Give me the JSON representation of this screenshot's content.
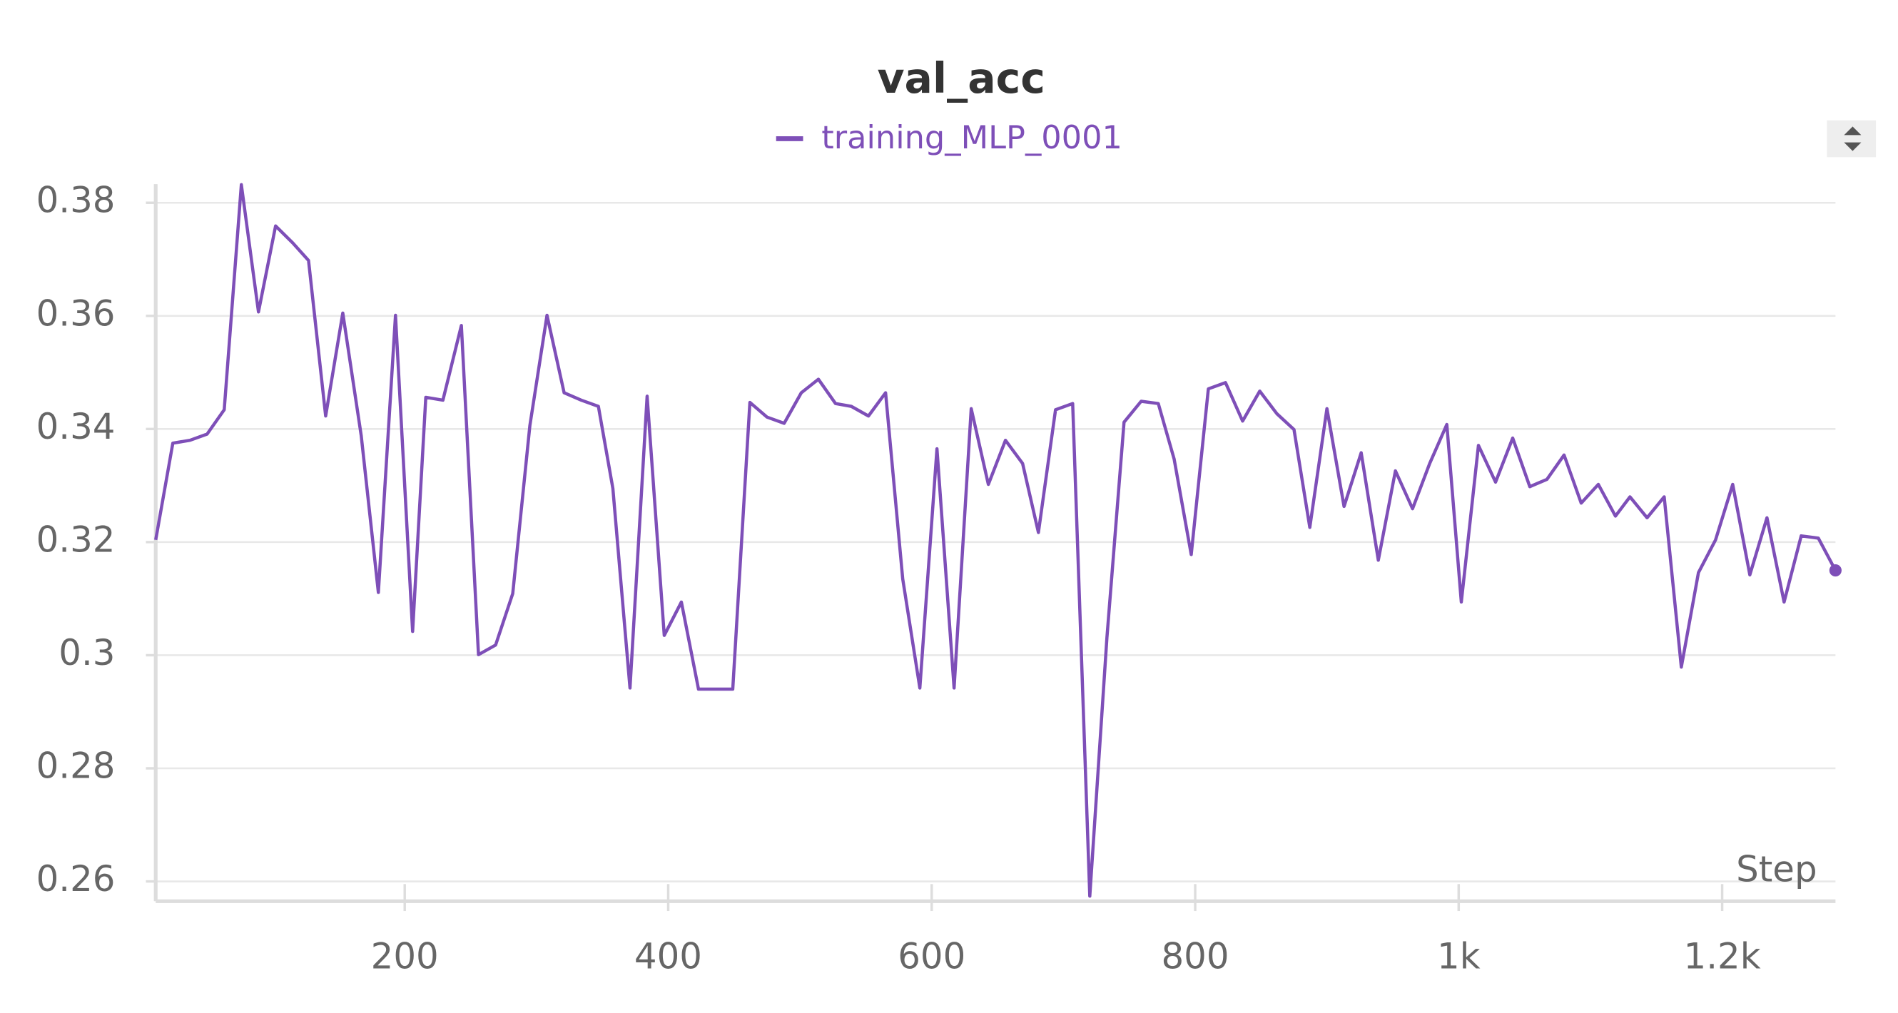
{
  "chart_data": {
    "type": "line",
    "title": "val_acc",
    "xlabel": "Step",
    "series": [
      {
        "name": "training_MLP_0001",
        "color": "#7e4fb8",
        "x": [
          11,
          24,
          37,
          50,
          63,
          76,
          89,
          102,
          115,
          127,
          140,
          153,
          167,
          180,
          193,
          206,
          216,
          229,
          243,
          256,
          269,
          282,
          295,
          308,
          321,
          334,
          347,
          358,
          371,
          384,
          397,
          410,
          423,
          436,
          449,
          462,
          475,
          488,
          501,
          514,
          527,
          539,
          552,
          565,
          578,
          591,
          604,
          617,
          630,
          643,
          656,
          669,
          681,
          694,
          707,
          720,
          733,
          746,
          759,
          772,
          784,
          797,
          810,
          823,
          836,
          849,
          862,
          875,
          887,
          900,
          913,
          926,
          939,
          952,
          965,
          978,
          991,
          1002,
          1015,
          1028,
          1041,
          1054,
          1067,
          1080,
          1093,
          1106,
          1119,
          1130,
          1143,
          1156,
          1169,
          1182,
          1195,
          1208,
          1221,
          1234,
          1247,
          1260,
          1273,
          1286
        ],
        "values": [
          0.3204,
          0.3375,
          0.338,
          0.3391,
          0.3434,
          0.3832,
          0.3607,
          0.3759,
          0.3729,
          0.3698,
          0.3423,
          0.3605,
          0.3388,
          0.3111,
          0.3601,
          0.3042,
          0.3456,
          0.3451,
          0.3583,
          0.3001,
          0.3018,
          0.3109,
          0.3406,
          0.3601,
          0.3464,
          0.3451,
          0.344,
          0.3295,
          0.2942,
          0.3458,
          0.3035,
          0.3094,
          0.294,
          0.294,
          0.294,
          0.3447,
          0.3421,
          0.341,
          0.3464,
          0.3488,
          0.3445,
          0.344,
          0.3423,
          0.3464,
          0.3135,
          0.2942,
          0.3365,
          0.2942,
          0.3436,
          0.3302,
          0.338,
          0.3339,
          0.3217,
          0.3434,
          0.3445,
          0.2574,
          0.3031,
          0.3412,
          0.3449,
          0.3445,
          0.3347,
          0.3178,
          0.3471,
          0.3482,
          0.3414,
          0.3467,
          0.3427,
          0.3399,
          0.3226,
          0.3436,
          0.3263,
          0.3358,
          0.3168,
          0.3326,
          0.3259,
          0.3339,
          0.3408,
          0.3094,
          0.3371,
          0.3306,
          0.3384,
          0.3298,
          0.3311,
          0.3354,
          0.3269,
          0.3302,
          0.3246,
          0.328,
          0.3243,
          0.328,
          0.2979,
          0.3146,
          0.3204,
          0.3302,
          0.3142,
          0.3243,
          0.3094,
          0.3211,
          0.3207,
          0.315
        ]
      }
    ],
    "xlim": [
      11,
      1286
    ],
    "ylim": [
      0.2565,
      0.3833
    ],
    "xticks": [
      200,
      400,
      600,
      800,
      {
        "value": 1000,
        "label": "1k"
      },
      {
        "value": 1200,
        "label": "1.2k"
      }
    ],
    "yticks": [
      0.26,
      0.28,
      0.3,
      0.32,
      0.34,
      0.36,
      0.38
    ],
    "grid": true
  }
}
